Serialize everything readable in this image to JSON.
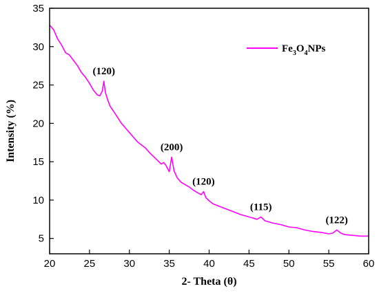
{
  "chart_data": {
    "type": "line",
    "xlabel": "2- Theta (θ)",
    "ylabel": "Intensity (%)",
    "xlim": [
      20,
      60
    ],
    "ylim": [
      3,
      35
    ],
    "xticks": [
      "20",
      "25",
      "30",
      "35",
      "40",
      "45",
      "50",
      "55",
      "60"
    ],
    "yticks": [
      "5",
      "10",
      "15",
      "20",
      "25",
      "30",
      "35"
    ],
    "grid": false,
    "legend_position": "top-right",
    "legend": {
      "base": "Fe",
      "sub1": "3",
      "mid": "O",
      "sub2": "4",
      "tail": "NPs"
    },
    "series": [
      {
        "name": "Fe3O4NPs",
        "color": "#ff00ff",
        "x": [
          20,
          20.5,
          21,
          21.5,
          22,
          22.5,
          23,
          23.5,
          24,
          24.5,
          25,
          25.5,
          26,
          26.3,
          26.6,
          26.8,
          27.0,
          27.3,
          27.6,
          28,
          28.5,
          29,
          29.5,
          30,
          30.5,
          31,
          31.5,
          32,
          32.5,
          33,
          33.5,
          34,
          34.3,
          34.6,
          35.0,
          35.3,
          35.6,
          36,
          36.5,
          37,
          37.5,
          38,
          38.5,
          39,
          39.3,
          39.6,
          40,
          40.5,
          41,
          42,
          43,
          44,
          45,
          46,
          46.5,
          47,
          48,
          49,
          50,
          51,
          52,
          53,
          54,
          55,
          55.5,
          56.0,
          56.5,
          57,
          58,
          59,
          60
        ],
        "y": [
          32.8,
          32.2,
          31.0,
          30.2,
          29.2,
          28.9,
          28.2,
          27.5,
          26.6,
          26.0,
          25.2,
          24.3,
          23.7,
          23.6,
          24.2,
          25.5,
          24.0,
          23.0,
          22.2,
          21.6,
          20.8,
          20.0,
          19.4,
          18.8,
          18.2,
          17.6,
          17.2,
          16.8,
          16.2,
          15.7,
          15.2,
          14.7,
          14.9,
          14.5,
          13.7,
          15.6,
          13.8,
          12.9,
          12.3,
          12.0,
          11.7,
          11.3,
          11.0,
          10.7,
          11.1,
          10.3,
          9.9,
          9.5,
          9.3,
          8.9,
          8.5,
          8.1,
          7.8,
          7.5,
          7.8,
          7.3,
          7.0,
          6.8,
          6.5,
          6.4,
          6.1,
          5.9,
          5.8,
          5.6,
          5.7,
          6.1,
          5.7,
          5.5,
          5.4,
          5.3,
          5.3
        ]
      }
    ],
    "annotations": [
      {
        "text": "(120)",
        "x": 26.8,
        "y": 25.5
      },
      {
        "text": "(200)",
        "x": 35.3,
        "y": 15.6
      },
      {
        "text": "(120)",
        "x": 39.3,
        "y": 11.1
      },
      {
        "text": "(115)",
        "x": 46.5,
        "y": 7.8
      },
      {
        "text": "(122)",
        "x": 56.0,
        "y": 6.1
      }
    ]
  }
}
